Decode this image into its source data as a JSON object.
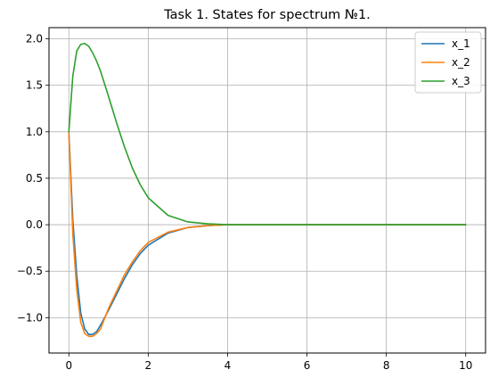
{
  "chart_data": {
    "type": "line",
    "title": "Task 1. States for spectrum №1.",
    "xlabel": "",
    "ylabel": "",
    "xlim": [
      -0.5,
      10.5
    ],
    "ylim": [
      -1.38,
      2.12
    ],
    "xticks": [
      0,
      2,
      4,
      6,
      8,
      10
    ],
    "xtick_labels": [
      "0",
      "2",
      "4",
      "6",
      "8",
      "10"
    ],
    "yticks": [
      -1.0,
      -0.5,
      0.0,
      0.5,
      1.0,
      1.5,
      2.0
    ],
    "ytick_labels": [
      "−1.0",
      "−0.5",
      "0.0",
      "0.5",
      "1.0",
      "1.5",
      "2.0"
    ],
    "grid": true,
    "legend_position": "top-right",
    "x": [
      0,
      0.1,
      0.2,
      0.3,
      0.4,
      0.5,
      0.6,
      0.7,
      0.8,
      1.0,
      1.2,
      1.4,
      1.6,
      1.8,
      2.0,
      2.5,
      3.0,
      3.5,
      4.0,
      5.0,
      6.0,
      7.0,
      8.0,
      9.0,
      10.0
    ],
    "series": [
      {
        "name": "x_1",
        "color": "#1f77b4",
        "values": [
          1.0,
          0.05,
          -0.55,
          -0.95,
          -1.12,
          -1.18,
          -1.18,
          -1.15,
          -1.08,
          -0.92,
          -0.75,
          -0.58,
          -0.43,
          -0.31,
          -0.22,
          -0.09,
          -0.03,
          -0.01,
          0.0,
          0.0,
          0.0,
          0.0,
          0.0,
          0.0,
          0.0
        ]
      },
      {
        "name": "x_2",
        "color": "#ff7f0e",
        "values": [
          1.0,
          -0.1,
          -0.7,
          -1.05,
          -1.17,
          -1.2,
          -1.2,
          -1.17,
          -1.12,
          -0.9,
          -0.72,
          -0.54,
          -0.4,
          -0.28,
          -0.19,
          -0.08,
          -0.03,
          -0.01,
          0.0,
          0.0,
          0.0,
          0.0,
          0.0,
          0.0,
          0.0
        ]
      },
      {
        "name": "x_3",
        "color": "#2ca02c",
        "values": [
          1.0,
          1.6,
          1.87,
          1.94,
          1.95,
          1.92,
          1.85,
          1.76,
          1.65,
          1.38,
          1.1,
          0.84,
          0.61,
          0.43,
          0.29,
          0.1,
          0.03,
          0.01,
          0.0,
          0.0,
          0.0,
          0.0,
          0.0,
          0.0,
          0.0
        ]
      }
    ]
  }
}
